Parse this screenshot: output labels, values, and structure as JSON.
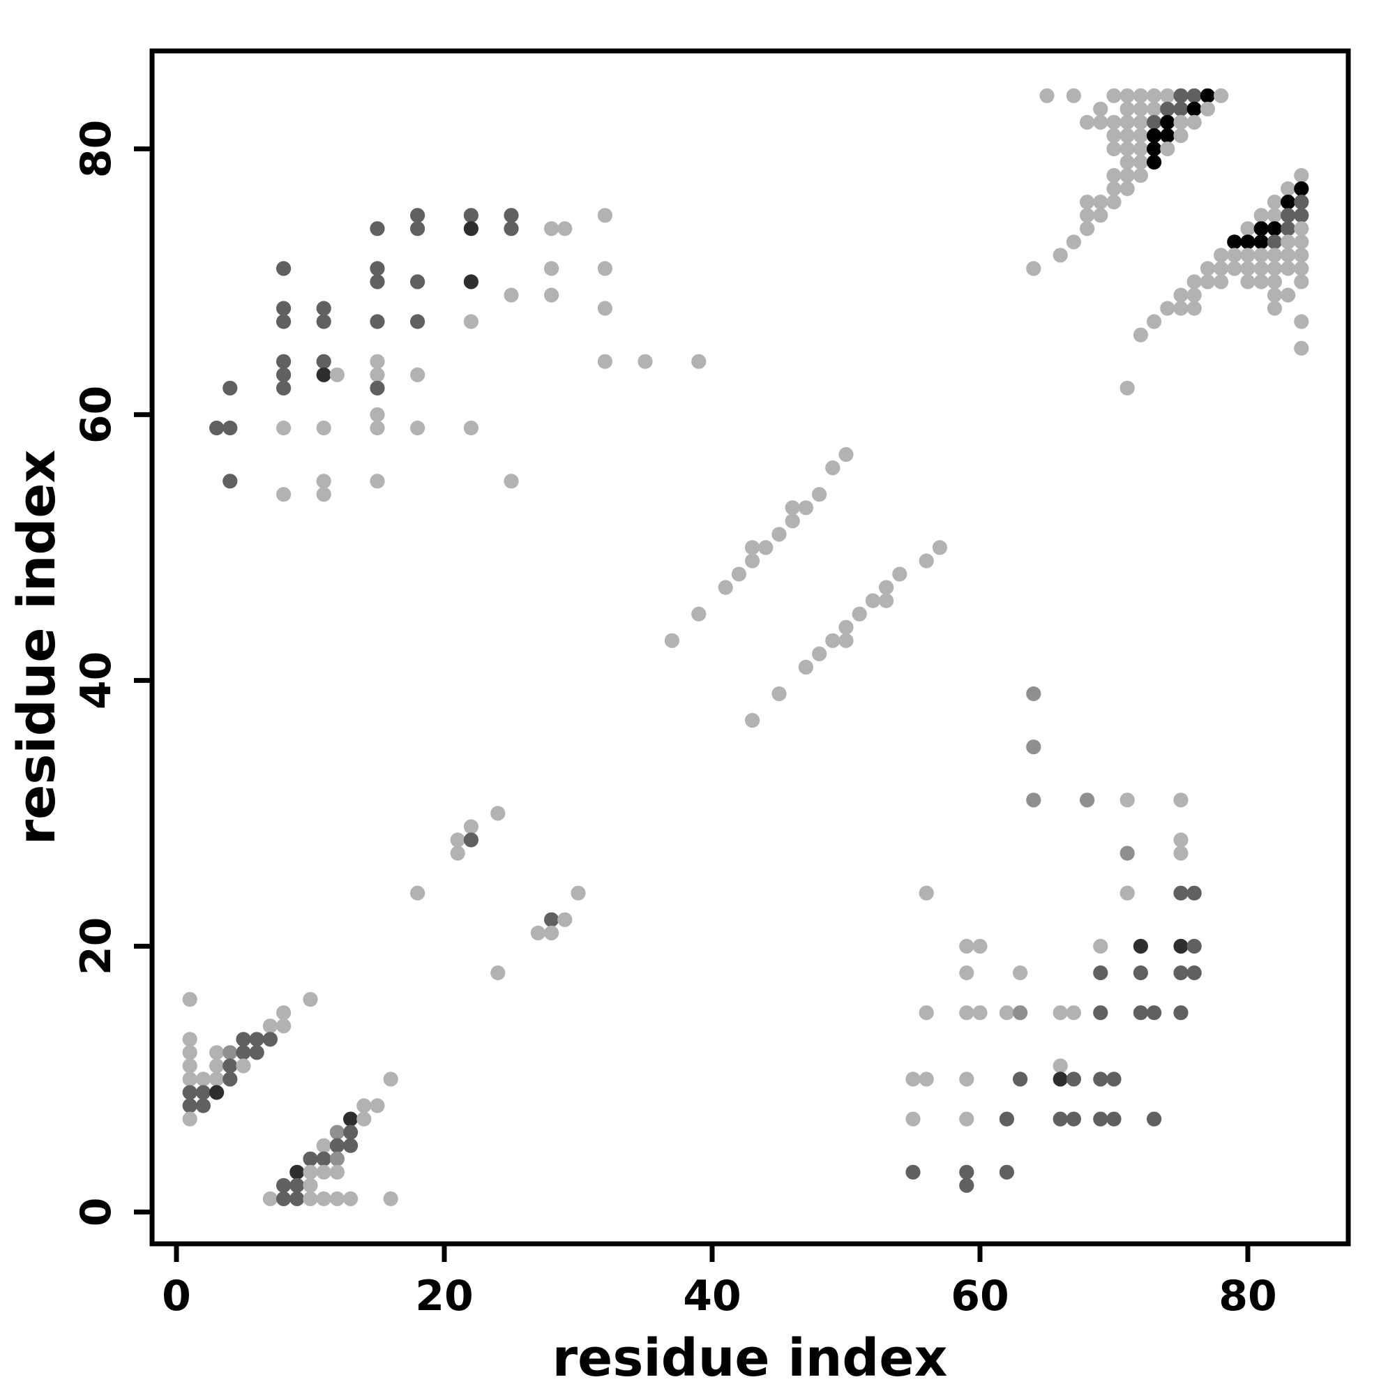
{
  "figure": {
    "background": "#ffffff",
    "axis_color": "#000000"
  },
  "chart_data": {
    "type": "scatter",
    "title": "",
    "xlabel": "residue index",
    "ylabel": "residue index",
    "xlim": [
      -3.5,
      88.5
    ],
    "ylim": [
      -3.5,
      88.5
    ],
    "xticks": [
      0,
      20,
      40,
      60,
      80
    ],
    "yticks": [
      0,
      20,
      40,
      60,
      80
    ],
    "grid": false,
    "legend_position": "none",
    "marker": "circle",
    "marker_diameter_units": 1.1,
    "shade_palette": {
      "l": "#b2b2b2",
      "m": "#8f8f8f",
      "d": "#606060",
      "k": "#2e2e2e",
      "b": "#000000"
    },
    "points": [
      [
        1,
        16,
        "l"
      ],
      [
        10,
        16,
        "l"
      ],
      [
        8,
        15,
        "l"
      ],
      [
        7,
        14,
        "l"
      ],
      [
        8,
        14,
        "l"
      ],
      [
        1,
        13,
        "l"
      ],
      [
        5,
        13,
        "d"
      ],
      [
        6,
        13,
        "d"
      ],
      [
        7,
        13,
        "d"
      ],
      [
        1,
        12,
        "l"
      ],
      [
        3,
        12,
        "l"
      ],
      [
        4,
        12,
        "m"
      ],
      [
        5,
        12,
        "d"
      ],
      [
        6,
        12,
        "d"
      ],
      [
        1,
        11,
        "l"
      ],
      [
        3,
        11,
        "l"
      ],
      [
        4,
        11,
        "d"
      ],
      [
        5,
        11,
        "l"
      ],
      [
        1,
        10,
        "l"
      ],
      [
        2,
        10,
        "l"
      ],
      [
        3,
        10,
        "l"
      ],
      [
        4,
        10,
        "d"
      ],
      [
        16,
        10,
        "l"
      ],
      [
        1,
        9,
        "d"
      ],
      [
        2,
        9,
        "d"
      ],
      [
        3,
        9,
        "k"
      ],
      [
        1,
        8,
        "d"
      ],
      [
        2,
        8,
        "d"
      ],
      [
        14,
        8,
        "l"
      ],
      [
        15,
        8,
        "l"
      ],
      [
        1,
        7,
        "l"
      ],
      [
        13,
        7,
        "k"
      ],
      [
        14,
        7,
        "l"
      ],
      [
        12,
        6,
        "m"
      ],
      [
        13,
        6,
        "d"
      ],
      [
        11,
        5,
        "l"
      ],
      [
        12,
        5,
        "d"
      ],
      [
        13,
        5,
        "d"
      ],
      [
        10,
        4,
        "d"
      ],
      [
        11,
        4,
        "d"
      ],
      [
        12,
        4,
        "m"
      ],
      [
        9,
        3,
        "k"
      ],
      [
        10,
        3,
        "l"
      ],
      [
        11,
        3,
        "l"
      ],
      [
        12,
        3,
        "l"
      ],
      [
        8,
        2,
        "d"
      ],
      [
        9,
        2,
        "d"
      ],
      [
        10,
        2,
        "l"
      ],
      [
        7,
        1,
        "l"
      ],
      [
        8,
        1,
        "d"
      ],
      [
        9,
        1,
        "d"
      ],
      [
        10,
        1,
        "l"
      ],
      [
        11,
        1,
        "l"
      ],
      [
        12,
        1,
        "l"
      ],
      [
        13,
        1,
        "l"
      ],
      [
        16,
        1,
        "l"
      ],
      [
        24,
        30,
        "l"
      ],
      [
        22,
        29,
        "l"
      ],
      [
        21,
        28,
        "l"
      ],
      [
        22,
        28,
        "d"
      ],
      [
        21,
        27,
        "l"
      ],
      [
        18,
        24,
        "l"
      ],
      [
        30,
        24,
        "l"
      ],
      [
        28,
        22,
        "d"
      ],
      [
        29,
        22,
        "l"
      ],
      [
        27,
        21,
        "l"
      ],
      [
        28,
        21,
        "l"
      ],
      [
        24,
        18,
        "l"
      ],
      [
        37,
        43,
        "l"
      ],
      [
        39,
        45,
        "l"
      ],
      [
        41,
        47,
        "l"
      ],
      [
        42,
        48,
        "l"
      ],
      [
        43,
        49,
        "l"
      ],
      [
        43,
        50,
        "l"
      ],
      [
        44,
        50,
        "l"
      ],
      [
        45,
        51,
        "l"
      ],
      [
        46,
        52,
        "l"
      ],
      [
        46,
        53,
        "l"
      ],
      [
        47,
        53,
        "l"
      ],
      [
        48,
        54,
        "l"
      ],
      [
        49,
        56,
        "l"
      ],
      [
        50,
        57,
        "l"
      ],
      [
        43,
        37,
        "l"
      ],
      [
        45,
        39,
        "l"
      ],
      [
        47,
        41,
        "l"
      ],
      [
        48,
        42,
        "l"
      ],
      [
        49,
        43,
        "l"
      ],
      [
        50,
        43,
        "l"
      ],
      [
        50,
        44,
        "l"
      ],
      [
        51,
        45,
        "l"
      ],
      [
        52,
        46,
        "l"
      ],
      [
        53,
        46,
        "l"
      ],
      [
        53,
        47,
        "l"
      ],
      [
        54,
        48,
        "l"
      ],
      [
        56,
        49,
        "l"
      ],
      [
        57,
        50,
        "l"
      ],
      [
        18,
        75,
        "d"
      ],
      [
        22,
        75,
        "d"
      ],
      [
        25,
        75,
        "d"
      ],
      [
        32,
        75,
        "l"
      ],
      [
        15,
        74,
        "d"
      ],
      [
        18,
        74,
        "d"
      ],
      [
        22,
        74,
        "k"
      ],
      [
        25,
        74,
        "d"
      ],
      [
        28,
        74,
        "l"
      ],
      [
        29,
        74,
        "l"
      ],
      [
        8,
        71,
        "d"
      ],
      [
        15,
        71,
        "d"
      ],
      [
        28,
        71,
        "l"
      ],
      [
        32,
        71,
        "l"
      ],
      [
        15,
        70,
        "d"
      ],
      [
        18,
        70,
        "d"
      ],
      [
        22,
        70,
        "k"
      ],
      [
        25,
        69,
        "l"
      ],
      [
        28,
        69,
        "l"
      ],
      [
        8,
        68,
        "d"
      ],
      [
        11,
        68,
        "d"
      ],
      [
        32,
        68,
        "l"
      ],
      [
        8,
        67,
        "d"
      ],
      [
        11,
        67,
        "d"
      ],
      [
        15,
        67,
        "d"
      ],
      [
        18,
        67,
        "d"
      ],
      [
        22,
        67,
        "l"
      ],
      [
        8,
        64,
        "d"
      ],
      [
        11,
        64,
        "d"
      ],
      [
        15,
        64,
        "l"
      ],
      [
        32,
        64,
        "l"
      ],
      [
        35,
        64,
        "l"
      ],
      [
        39,
        64,
        "l"
      ],
      [
        8,
        63,
        "d"
      ],
      [
        11,
        63,
        "k"
      ],
      [
        12,
        63,
        "l"
      ],
      [
        15,
        63,
        "l"
      ],
      [
        18,
        63,
        "l"
      ],
      [
        4,
        62,
        "d"
      ],
      [
        8,
        62,
        "d"
      ],
      [
        15,
        62,
        "d"
      ],
      [
        15,
        60,
        "l"
      ],
      [
        3,
        59,
        "d"
      ],
      [
        4,
        59,
        "d"
      ],
      [
        8,
        59,
        "l"
      ],
      [
        11,
        59,
        "l"
      ],
      [
        15,
        59,
        "l"
      ],
      [
        18,
        59,
        "l"
      ],
      [
        22,
        59,
        "l"
      ],
      [
        4,
        55,
        "d"
      ],
      [
        11,
        55,
        "l"
      ],
      [
        15,
        55,
        "l"
      ],
      [
        25,
        55,
        "l"
      ],
      [
        8,
        54,
        "l"
      ],
      [
        11,
        54,
        "l"
      ],
      [
        64,
        39,
        "m"
      ],
      [
        64,
        35,
        "m"
      ],
      [
        64,
        31,
        "m"
      ],
      [
        68,
        31,
        "m"
      ],
      [
        71,
        31,
        "l"
      ],
      [
        75,
        31,
        "l"
      ],
      [
        75,
        28,
        "l"
      ],
      [
        71,
        27,
        "m"
      ],
      [
        75,
        27,
        "l"
      ],
      [
        56,
        24,
        "l"
      ],
      [
        71,
        24,
        "l"
      ],
      [
        75,
        24,
        "d"
      ],
      [
        76,
        24,
        "d"
      ],
      [
        59,
        20,
        "l"
      ],
      [
        60,
        20,
        "l"
      ],
      [
        69,
        20,
        "l"
      ],
      [
        72,
        20,
        "k"
      ],
      [
        75,
        20,
        "k"
      ],
      [
        76,
        20,
        "d"
      ],
      [
        59,
        18,
        "l"
      ],
      [
        63,
        18,
        "l"
      ],
      [
        69,
        18,
        "d"
      ],
      [
        72,
        18,
        "d"
      ],
      [
        75,
        18,
        "d"
      ],
      [
        76,
        18,
        "d"
      ],
      [
        56,
        15,
        "l"
      ],
      [
        59,
        15,
        "l"
      ],
      [
        60,
        15,
        "l"
      ],
      [
        62,
        15,
        "l"
      ],
      [
        63,
        15,
        "m"
      ],
      [
        66,
        15,
        "l"
      ],
      [
        67,
        15,
        "l"
      ],
      [
        69,
        15,
        "d"
      ],
      [
        72,
        15,
        "d"
      ],
      [
        73,
        15,
        "d"
      ],
      [
        75,
        15,
        "d"
      ],
      [
        66,
        11,
        "l"
      ],
      [
        55,
        10,
        "l"
      ],
      [
        56,
        10,
        "l"
      ],
      [
        59,
        10,
        "l"
      ],
      [
        63,
        10,
        "d"
      ],
      [
        66,
        10,
        "k"
      ],
      [
        67,
        10,
        "d"
      ],
      [
        69,
        10,
        "d"
      ],
      [
        70,
        10,
        "d"
      ],
      [
        55,
        7,
        "l"
      ],
      [
        59,
        7,
        "l"
      ],
      [
        62,
        7,
        "d"
      ],
      [
        66,
        7,
        "d"
      ],
      [
        67,
        7,
        "d"
      ],
      [
        69,
        7,
        "d"
      ],
      [
        70,
        7,
        "d"
      ],
      [
        73,
        7,
        "d"
      ],
      [
        55,
        3,
        "d"
      ],
      [
        59,
        3,
        "d"
      ],
      [
        62,
        3,
        "d"
      ],
      [
        59,
        2,
        "d"
      ],
      [
        65,
        84,
        "l"
      ],
      [
        67,
        84,
        "l"
      ],
      [
        70,
        84,
        "l"
      ],
      [
        71,
        84,
        "l"
      ],
      [
        72,
        84,
        "l"
      ],
      [
        73,
        84,
        "l"
      ],
      [
        74,
        84,
        "l"
      ],
      [
        75,
        84,
        "d"
      ],
      [
        76,
        84,
        "d"
      ],
      [
        77,
        84,
        "b"
      ],
      [
        78,
        84,
        "l"
      ],
      [
        69,
        83,
        "l"
      ],
      [
        71,
        83,
        "l"
      ],
      [
        72,
        83,
        "l"
      ],
      [
        73,
        83,
        "l"
      ],
      [
        74,
        83,
        "d"
      ],
      [
        75,
        83,
        "d"
      ],
      [
        76,
        83,
        "b"
      ],
      [
        77,
        83,
        "l"
      ],
      [
        68,
        82,
        "l"
      ],
      [
        69,
        82,
        "l"
      ],
      [
        70,
        82,
        "l"
      ],
      [
        71,
        82,
        "l"
      ],
      [
        72,
        82,
        "l"
      ],
      [
        73,
        82,
        "d"
      ],
      [
        74,
        82,
        "b"
      ],
      [
        75,
        82,
        "l"
      ],
      [
        76,
        82,
        "l"
      ],
      [
        70,
        81,
        "l"
      ],
      [
        71,
        81,
        "l"
      ],
      [
        72,
        81,
        "l"
      ],
      [
        73,
        81,
        "b"
      ],
      [
        74,
        81,
        "b"
      ],
      [
        75,
        81,
        "l"
      ],
      [
        70,
        80,
        "l"
      ],
      [
        71,
        80,
        "l"
      ],
      [
        72,
        80,
        "l"
      ],
      [
        73,
        80,
        "b"
      ],
      [
        74,
        80,
        "l"
      ],
      [
        71,
        79,
        "l"
      ],
      [
        72,
        79,
        "l"
      ],
      [
        73,
        79,
        "b"
      ],
      [
        70,
        78,
        "l"
      ],
      [
        71,
        78,
        "l"
      ],
      [
        72,
        78,
        "l"
      ],
      [
        70,
        77,
        "l"
      ],
      [
        71,
        77,
        "l"
      ],
      [
        68,
        76,
        "l"
      ],
      [
        69,
        76,
        "l"
      ],
      [
        70,
        76,
        "l"
      ],
      [
        68,
        75,
        "l"
      ],
      [
        69,
        75,
        "l"
      ],
      [
        68,
        74,
        "l"
      ],
      [
        67,
        73,
        "l"
      ],
      [
        66,
        72,
        "l"
      ],
      [
        64,
        71,
        "l"
      ],
      [
        84,
        78,
        "l"
      ],
      [
        83,
        77,
        "l"
      ],
      [
        84,
        77,
        "b"
      ],
      [
        82,
        76,
        "l"
      ],
      [
        83,
        76,
        "b"
      ],
      [
        84,
        76,
        "d"
      ],
      [
        81,
        75,
        "l"
      ],
      [
        82,
        75,
        "l"
      ],
      [
        83,
        75,
        "d"
      ],
      [
        84,
        75,
        "d"
      ],
      [
        80,
        74,
        "l"
      ],
      [
        81,
        74,
        "b"
      ],
      [
        82,
        74,
        "b"
      ],
      [
        83,
        74,
        "d"
      ],
      [
        84,
        74,
        "l"
      ],
      [
        79,
        73,
        "b"
      ],
      [
        80,
        73,
        "b"
      ],
      [
        81,
        73,
        "b"
      ],
      [
        82,
        73,
        "d"
      ],
      [
        83,
        73,
        "l"
      ],
      [
        84,
        73,
        "l"
      ],
      [
        78,
        72,
        "l"
      ],
      [
        79,
        72,
        "l"
      ],
      [
        80,
        72,
        "l"
      ],
      [
        81,
        72,
        "l"
      ],
      [
        82,
        72,
        "l"
      ],
      [
        83,
        72,
        "l"
      ],
      [
        84,
        72,
        "l"
      ],
      [
        77,
        71,
        "l"
      ],
      [
        78,
        71,
        "l"
      ],
      [
        79,
        71,
        "l"
      ],
      [
        80,
        71,
        "l"
      ],
      [
        81,
        71,
        "l"
      ],
      [
        82,
        71,
        "l"
      ],
      [
        83,
        71,
        "l"
      ],
      [
        84,
        71,
        "l"
      ],
      [
        76,
        70,
        "l"
      ],
      [
        77,
        70,
        "l"
      ],
      [
        78,
        70,
        "l"
      ],
      [
        80,
        70,
        "l"
      ],
      [
        81,
        70,
        "l"
      ],
      [
        82,
        70,
        "l"
      ],
      [
        84,
        70,
        "l"
      ],
      [
        75,
        69,
        "l"
      ],
      [
        76,
        69,
        "l"
      ],
      [
        82,
        69,
        "l"
      ],
      [
        83,
        69,
        "l"
      ],
      [
        74,
        68,
        "l"
      ],
      [
        75,
        68,
        "l"
      ],
      [
        76,
        68,
        "l"
      ],
      [
        82,
        68,
        "l"
      ],
      [
        73,
        67,
        "l"
      ],
      [
        84,
        67,
        "l"
      ],
      [
        72,
        66,
        "l"
      ],
      [
        84,
        65,
        "l"
      ],
      [
        71,
        62,
        "l"
      ]
    ]
  }
}
